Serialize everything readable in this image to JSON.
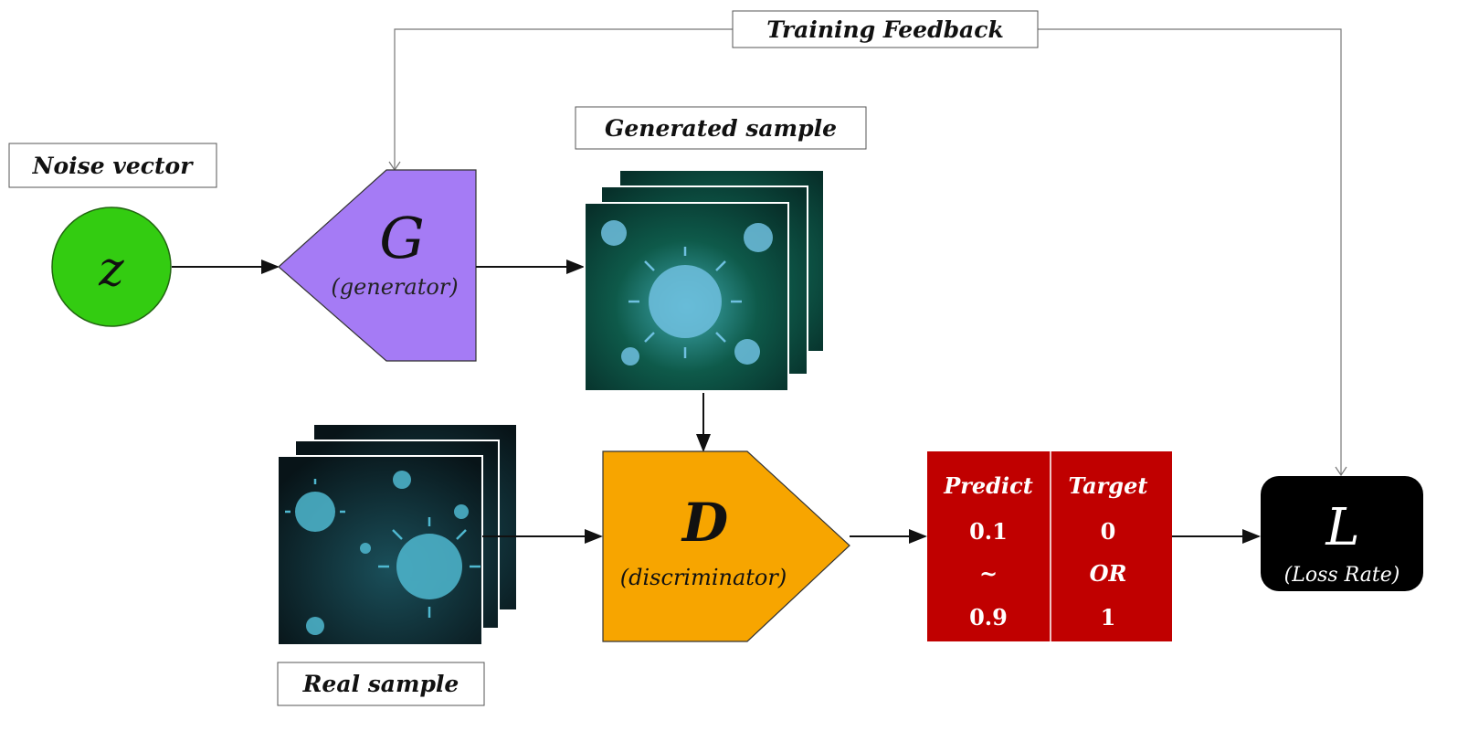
{
  "labels": {
    "training_feedback": "Training Feedback",
    "noise_vector": "Noise vector",
    "generated_sample": "Generated sample",
    "real_sample": "Real sample"
  },
  "nodes": {
    "noise": {
      "symbol": "z",
      "color": "#33cc11"
    },
    "generator": {
      "symbol": "G",
      "caption": "(generator)",
      "color": "#a57bf5"
    },
    "discriminator": {
      "symbol": "D",
      "caption": "(discriminator)",
      "color": "#f7a500"
    },
    "loss": {
      "symbol": "L",
      "caption": "(Loss Rate)",
      "color": "#000000"
    }
  },
  "output_table": {
    "color": "#c00000",
    "columns": [
      {
        "header": "Predict",
        "rows": [
          "0.1",
          "~",
          "0.9"
        ]
      },
      {
        "header": "Target",
        "rows": [
          "0",
          "OR",
          "1"
        ]
      }
    ]
  }
}
